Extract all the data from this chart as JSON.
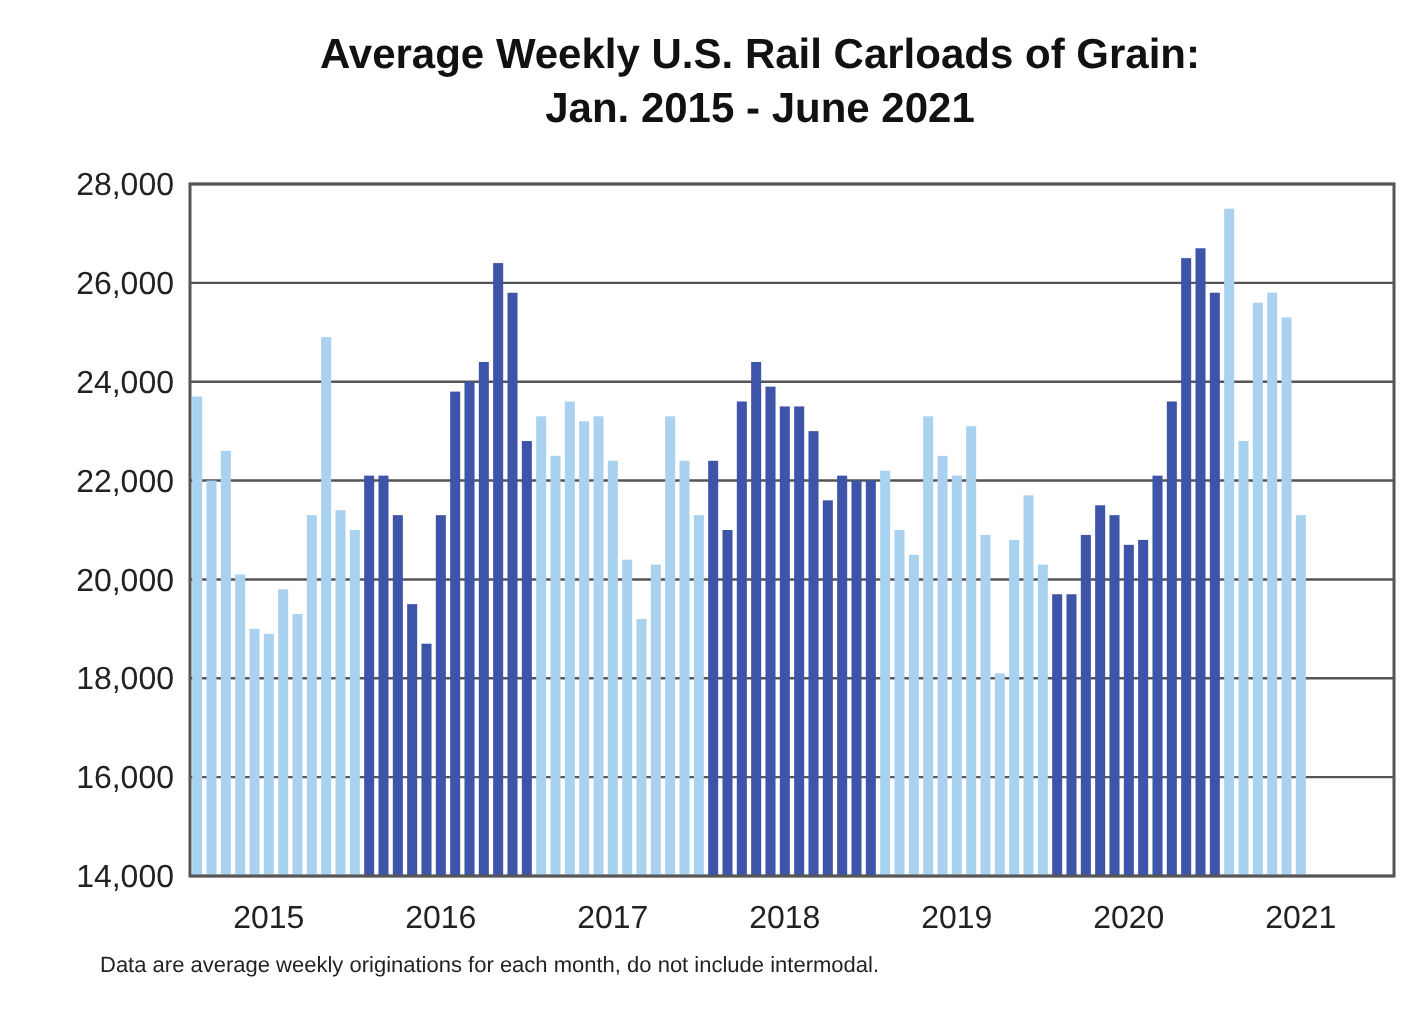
{
  "chart_data": {
    "type": "bar",
    "title": "Average Weekly U.S. Rail Carloads of Grain:\nJan. 2015 - June 2021",
    "categories": [
      null,
      null,
      null,
      null,
      null,
      "2015",
      null,
      null,
      null,
      null,
      null,
      null,
      null,
      null,
      null,
      null,
      null,
      "2016",
      null,
      null,
      null,
      null,
      null,
      null,
      null,
      null,
      null,
      null,
      null,
      "2017",
      null,
      null,
      null,
      null,
      null,
      null,
      null,
      null,
      null,
      null,
      null,
      "2018",
      null,
      null,
      null,
      null,
      null,
      null,
      null,
      null,
      null,
      null,
      null,
      "2019",
      null,
      null,
      null,
      null,
      null,
      null,
      null,
      null,
      null,
      null,
      null,
      "2020",
      null,
      null,
      null,
      null,
      null,
      null,
      null,
      null,
      null,
      null,
      null,
      "2021",
      null,
      null,
      null,
      null,
      null,
      null
    ],
    "values": [
      23700,
      22000,
      22600,
      20100,
      19000,
      18900,
      19800,
      19300,
      21300,
      24900,
      21400,
      21000,
      22100,
      22100,
      21300,
      19500,
      18700,
      21300,
      23800,
      24000,
      24400,
      26400,
      25800,
      22800,
      23300,
      22500,
      23600,
      23200,
      23300,
      22400,
      20400,
      19200,
      20300,
      23300,
      22400,
      21300,
      22400,
      21000,
      23600,
      24400,
      23900,
      23500,
      23500,
      23000,
      21600,
      22100,
      22000,
      22000,
      22200,
      21000,
      20500,
      23300,
      22500,
      22100,
      23100,
      20900,
      18100,
      20800,
      21700,
      20300,
      19700,
      19700,
      20900,
      21500,
      21300,
      20700,
      20800,
      22100,
      23600,
      26500,
      26700,
      25800,
      27500,
      22800,
      25600,
      25800,
      25300,
      21300,
      null,
      null,
      null,
      null,
      null,
      null
    ],
    "colors": [
      "#a9d1f0",
      "#a9d1f0",
      "#a9d1f0",
      "#a9d1f0",
      "#a9d1f0",
      "#a9d1f0",
      "#a9d1f0",
      "#a9d1f0",
      "#a9d1f0",
      "#a9d1f0",
      "#a9d1f0",
      "#a9d1f0",
      "#3d54a8",
      "#3d54a8",
      "#3d54a8",
      "#3d54a8",
      "#3d54a8",
      "#3d54a8",
      "#3d54a8",
      "#3d54a8",
      "#3d54a8",
      "#3d54a8",
      "#3d54a8",
      "#3d54a8",
      "#a9d1f0",
      "#a9d1f0",
      "#a9d1f0",
      "#a9d1f0",
      "#a9d1f0",
      "#a9d1f0",
      "#a9d1f0",
      "#a9d1f0",
      "#a9d1f0",
      "#a9d1f0",
      "#a9d1f0",
      "#a9d1f0",
      "#3d54a8",
      "#3d54a8",
      "#3d54a8",
      "#3d54a8",
      "#3d54a8",
      "#3d54a8",
      "#3d54a8",
      "#3d54a8",
      "#3d54a8",
      "#3d54a8",
      "#3d54a8",
      "#3d54a8",
      "#a9d1f0",
      "#a9d1f0",
      "#a9d1f0",
      "#a9d1f0",
      "#a9d1f0",
      "#a9d1f0",
      "#a9d1f0",
      "#a9d1f0",
      "#a9d1f0",
      "#a9d1f0",
      "#a9d1f0",
      "#a9d1f0",
      "#3d54a8",
      "#3d54a8",
      "#3d54a8",
      "#3d54a8",
      "#3d54a8",
      "#3d54a8",
      "#3d54a8",
      "#3d54a8",
      "#3d54a8",
      "#3d54a8",
      "#3d54a8",
      "#3d54a8",
      "#a9d1f0",
      "#a9d1f0",
      "#a9d1f0",
      "#a9d1f0",
      "#a9d1f0",
      "#a9d1f0",
      null,
      null,
      null,
      null,
      null,
      null
    ],
    "ylim": [
      14000,
      28000
    ],
    "yticks": [
      {
        "value": 14000,
        "label": "14,000"
      },
      {
        "value": 16000,
        "label": "16,000"
      },
      {
        "value": 18000,
        "label": "18,000"
      },
      {
        "value": 20000,
        "label": "20,000"
      },
      {
        "value": 22000,
        "label": "22,000"
      },
      {
        "value": 24000,
        "label": "24,000"
      },
      {
        "value": 26000,
        "label": "26,000"
      },
      {
        "value": 28000,
        "label": "28,000"
      }
    ],
    "grid": "y",
    "annotations": [
      "Data are average weekly originations for each month, do not include intermodal."
    ]
  }
}
